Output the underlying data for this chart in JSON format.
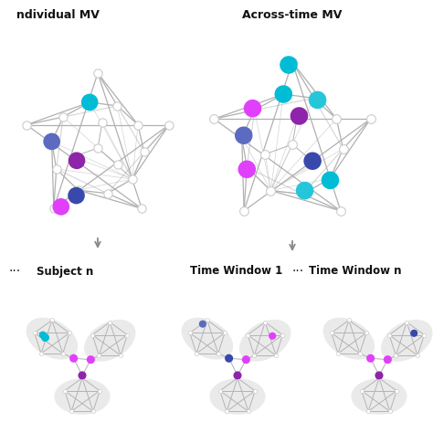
{
  "bg_color": "#ffffff",
  "node_white": "#ffffff",
  "node_edge": "#cccccc",
  "edge_color": "#b0b0b0",
  "ellipse_color": "#e8e8e8",
  "text_color": "#111111",
  "cyan": "#00bcd4",
  "magenta": "#e040fb",
  "blue1": "#5c6bc0",
  "blue2": "#3949ab",
  "purple": "#8e24aa",
  "teal": "#26c6da",
  "label1": "ndividual MV",
  "label2": "Across-time MV",
  "label_subject": "Subject n",
  "label_tw1": "Time Window 1",
  "label_twn": "Time Window n",
  "dots": "···"
}
